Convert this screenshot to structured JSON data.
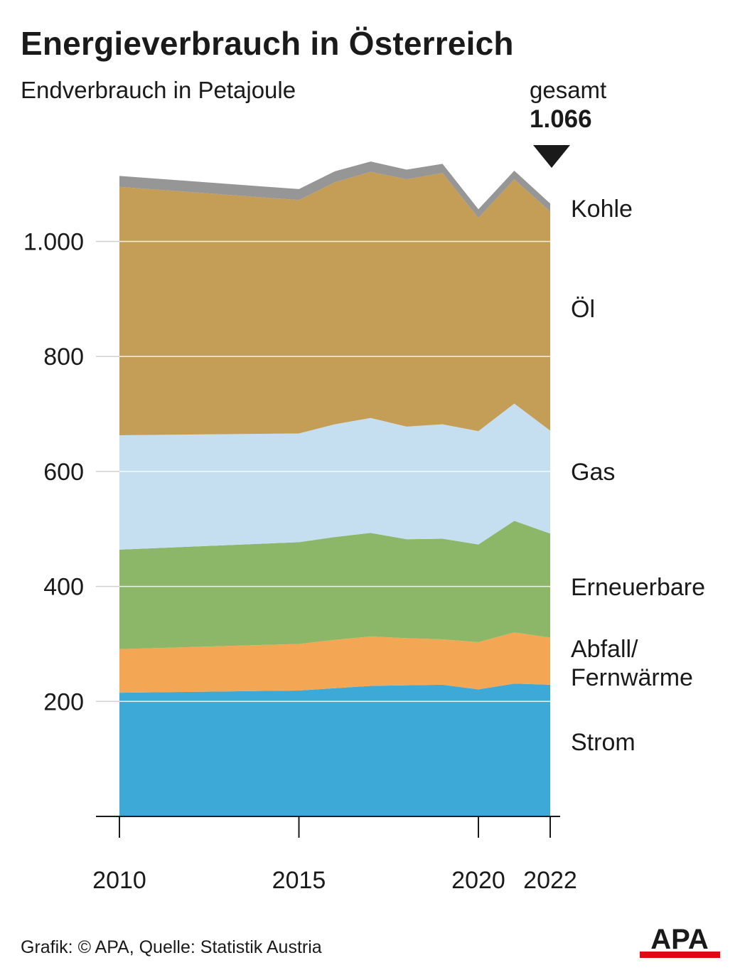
{
  "title": "Energieverbrauch in Österreich",
  "subtitle": "Endverbrauch in Petajoule",
  "total": {
    "label": "gesamt",
    "value": "1.066"
  },
  "footer": "Grafik: © APA, Quelle: Statistik Austria",
  "logo": {
    "text": "APA",
    "color": "#e30613"
  },
  "chart_data": {
    "type": "area",
    "stacked": true,
    "x": [
      2010,
      2015,
      2016,
      2017,
      2018,
      2019,
      2020,
      2021,
      2022
    ],
    "x_tick_labels": [
      "2010",
      "2015",
      "2020",
      "2022"
    ],
    "x_ticks": [
      2010,
      2015,
      2020,
      2022
    ],
    "y_ticks": [
      200,
      400,
      600,
      800,
      1000
    ],
    "y_tick_labels": [
      "200",
      "400",
      "600",
      "800",
      "1.000"
    ],
    "ylim": [
      0,
      1160
    ],
    "grid": true,
    "series": [
      {
        "name": "Strom",
        "color": "#3ca9d6",
        "values": [
          215,
          219,
          223,
          227,
          228,
          229,
          221,
          231,
          229
        ]
      },
      {
        "name": "Abfall/\nFernwärme",
        "color": "#f3a755",
        "values": [
          76,
          81,
          84,
          86,
          82,
          79,
          82,
          89,
          82
        ]
      },
      {
        "name": "Erneuerbare",
        "color": "#8db768",
        "values": [
          173,
          177,
          179,
          180,
          172,
          175,
          170,
          194,
          181
        ]
      },
      {
        "name": "Gas",
        "color": "#c5dff0",
        "values": [
          199,
          189,
          196,
          200,
          196,
          199,
          197,
          204,
          179
        ]
      },
      {
        "name": "Öl",
        "color": "#c49d57",
        "values": [
          432,
          406,
          421,
          428,
          430,
          437,
          371,
          390,
          381
        ]
      },
      {
        "name": "Kohle",
        "color": "#969696",
        "values": [
          19,
          19,
          19,
          18,
          17,
          16,
          15,
          15,
          14
        ]
      }
    ]
  }
}
